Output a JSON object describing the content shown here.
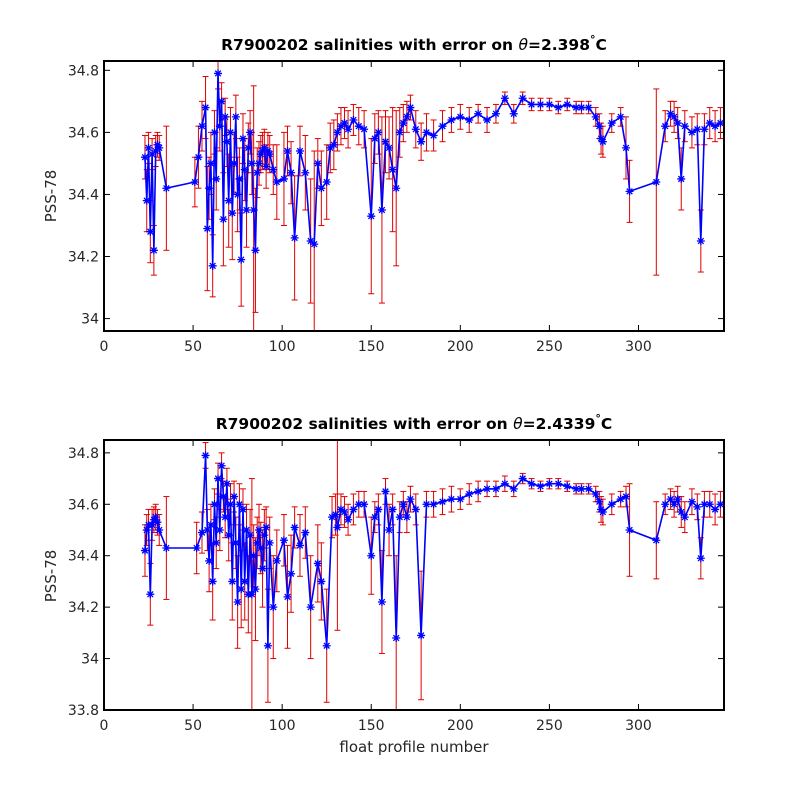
{
  "chart_data": [
    {
      "type": "line",
      "title_prefix": "R7900202 salinities with error on ",
      "title_theta": "θ",
      "title_value": "=2.398",
      "title_unit": "C",
      "xlabel": "",
      "ylabel": "PSS-78",
      "xlim": [
        0,
        348
      ],
      "ylim": [
        33.96,
        34.83
      ],
      "xticks": [
        0,
        50,
        100,
        150,
        200,
        250,
        300
      ],
      "yticks": [
        34,
        34.2,
        34.4,
        34.6,
        34.8
      ],
      "ytick_labels": [
        "34",
        "34.2",
        "34.4",
        "34.6",
        "34.8"
      ],
      "grid": false,
      "colors": {
        "line": "#00cc00",
        "error_bars": "#e00000",
        "markers": "#0000ff"
      },
      "series": [
        {
          "x": [
            23,
            24,
            25,
            26,
            27,
            28,
            29,
            30,
            31,
            35,
            51,
            53,
            55,
            57,
            58,
            59,
            60,
            61,
            62,
            63,
            64,
            65,
            66,
            67,
            68,
            69,
            70,
            71,
            72,
            73,
            74,
            75,
            76,
            77,
            78,
            79,
            80,
            81,
            82,
            83,
            84,
            85,
            86,
            87,
            88,
            89,
            90,
            91,
            92,
            93,
            95,
            97,
            101,
            103,
            105,
            107,
            110,
            113,
            116,
            118,
            120,
            122,
            125,
            127,
            129,
            131,
            133,
            135,
            137,
            140,
            143,
            146,
            150,
            152,
            154,
            156,
            158,
            160,
            162,
            164,
            166,
            168,
            170,
            172,
            175,
            178,
            181,
            185,
            190,
            195,
            200,
            205,
            210,
            215,
            220,
            225,
            230,
            235,
            240,
            245,
            250,
            255,
            260,
            265,
            268,
            272,
            276,
            278,
            279,
            280,
            285,
            290,
            293,
            295,
            310,
            315,
            318,
            320,
            322,
            324,
            326,
            330,
            333,
            335,
            337,
            340,
            343,
            346
          ],
          "y": [
            34.52,
            34.38,
            34.55,
            34.28,
            34.53,
            34.22,
            34.54,
            34.56,
            34.55,
            34.42,
            34.44,
            34.52,
            34.62,
            34.68,
            34.29,
            34.42,
            34.5,
            34.17,
            34.6,
            34.45,
            34.79,
            34.62,
            34.7,
            34.32,
            34.65,
            34.57,
            34.38,
            34.6,
            34.34,
            34.5,
            34.65,
            34.4,
            34.45,
            34.19,
            34.58,
            34.48,
            34.35,
            34.55,
            34.6,
            34.5,
            34.35,
            34.22,
            34.47,
            34.5,
            34.53,
            34.54,
            34.55,
            34.49,
            34.54,
            34.53,
            34.48,
            34.44,
            34.45,
            34.54,
            34.47,
            34.26,
            34.54,
            34.47,
            34.25,
            34.24,
            34.5,
            34.42,
            34.44,
            34.55,
            34.56,
            34.6,
            34.62,
            34.63,
            34.61,
            34.64,
            34.62,
            34.61,
            34.33,
            34.58,
            34.6,
            34.35,
            34.57,
            34.55,
            34.48,
            34.42,
            34.6,
            34.63,
            34.65,
            34.68,
            34.61,
            34.57,
            34.6,
            34.59,
            34.62,
            34.64,
            34.65,
            34.64,
            34.66,
            34.64,
            34.66,
            34.71,
            34.66,
            34.71,
            34.69,
            34.69,
            34.69,
            34.68,
            34.69,
            34.68,
            34.68,
            34.68,
            34.65,
            34.62,
            34.58,
            34.57,
            34.63,
            34.65,
            34.55,
            34.41,
            34.44,
            34.62,
            34.66,
            34.65,
            34.63,
            34.45,
            34.62,
            34.6,
            34.61,
            34.25,
            34.61,
            34.63,
            34.62,
            34.63
          ],
          "err": [
            0.07,
            0.1,
            0.05,
            0.1,
            0.05,
            0.08,
            0.05,
            0.04,
            0.04,
            0.2,
            0.08,
            0.1,
            0.08,
            0.1,
            0.2,
            0.1,
            0.1,
            0.1,
            0.07,
            0.1,
            0.05,
            0.08,
            0.06,
            0.15,
            0.06,
            0.08,
            0.15,
            0.08,
            0.15,
            0.1,
            0.07,
            0.12,
            0.1,
            0.15,
            0.08,
            0.1,
            0.12,
            0.08,
            0.07,
            0.1,
            0.4,
            0.2,
            0.08,
            0.07,
            0.06,
            0.06,
            0.06,
            0.07,
            0.06,
            0.06,
            0.08,
            0.12,
            0.15,
            0.08,
            0.1,
            0.2,
            0.08,
            0.12,
            0.2,
            0.3,
            0.08,
            0.12,
            0.12,
            0.08,
            0.08,
            0.06,
            0.06,
            0.05,
            0.06,
            0.05,
            0.06,
            0.06,
            0.25,
            0.08,
            0.07,
            0.3,
            0.1,
            0.1,
            0.2,
            0.25,
            0.08,
            0.06,
            0.05,
            0.04,
            0.06,
            0.06,
            0.06,
            0.05,
            0.05,
            0.04,
            0.04,
            0.04,
            0.03,
            0.04,
            0.03,
            0.02,
            0.03,
            0.02,
            0.02,
            0.02,
            0.02,
            0.02,
            0.02,
            0.02,
            0.02,
            0.02,
            0.03,
            0.04,
            0.05,
            0.05,
            0.03,
            0.03,
            0.1,
            0.1,
            0.3,
            0.05,
            0.04,
            0.05,
            0.05,
            0.1,
            0.05,
            0.05,
            0.05,
            0.1,
            0.05,
            0.05,
            0.05,
            0.05
          ]
        }
      ]
    },
    {
      "type": "line",
      "title_prefix": "R7900202 salinities with error on ",
      "title_theta": "θ",
      "title_value": "=2.4339",
      "title_unit": "C",
      "xlabel": "float profile number",
      "ylabel": "PSS-78",
      "xlim": [
        0,
        348
      ],
      "ylim": [
        33.8,
        34.85
      ],
      "xticks": [
        0,
        50,
        100,
        150,
        200,
        250,
        300
      ],
      "yticks": [
        33.8,
        34,
        34.2,
        34.4,
        34.6,
        34.8
      ],
      "ytick_labels": [
        "33.8",
        "34",
        "34.2",
        "34.4",
        "34.6",
        "34.8"
      ],
      "grid": false,
      "colors": {
        "line": "#00cc00",
        "error_bars": "#e00000",
        "markers": "#0000ff"
      },
      "series": [
        {
          "x": [
            23,
            24,
            25,
            26,
            27,
            28,
            29,
            30,
            31,
            35,
            52,
            55,
            57,
            58,
            59,
            60,
            61,
            62,
            63,
            64,
            65,
            66,
            67,
            68,
            69,
            70,
            71,
            72,
            73,
            74,
            75,
            76,
            77,
            78,
            79,
            80,
            81,
            82,
            83,
            84,
            85,
            86,
            87,
            88,
            89,
            90,
            91,
            92,
            93,
            95,
            97,
            101,
            103,
            105,
            107,
            110,
            113,
            116,
            120,
            122,
            125,
            128,
            130,
            131,
            133,
            135,
            137,
            140,
            143,
            146,
            150,
            152,
            154,
            156,
            158,
            160,
            162,
            164,
            166,
            168,
            170,
            172,
            175,
            178,
            181,
            185,
            190,
            195,
            200,
            205,
            210,
            215,
            220,
            225,
            230,
            235,
            240,
            245,
            250,
            255,
            260,
            265,
            268,
            272,
            276,
            278,
            279,
            280,
            285,
            290,
            293,
            295,
            310,
            315,
            318,
            320,
            322,
            324,
            326,
            330,
            333,
            335,
            337,
            340,
            343,
            346
          ],
          "y": [
            34.42,
            34.5,
            34.52,
            34.25,
            34.52,
            34.54,
            34.55,
            34.53,
            34.5,
            34.43,
            34.43,
            34.49,
            34.79,
            34.5,
            34.38,
            34.52,
            34.3,
            34.6,
            34.45,
            34.7,
            34.5,
            34.75,
            34.63,
            34.55,
            34.68,
            34.48,
            34.6,
            34.3,
            34.63,
            34.45,
            34.22,
            34.6,
            34.27,
            34.58,
            34.3,
            34.5,
            34.25,
            34.48,
            34.25,
            34.4,
            34.27,
            34.45,
            34.5,
            34.43,
            34.35,
            34.48,
            34.51,
            34.05,
            34.45,
            34.2,
            34.38,
            34.46,
            34.24,
            34.33,
            34.51,
            34.44,
            34.49,
            34.2,
            34.37,
            34.3,
            34.05,
            34.55,
            34.56,
            34.51,
            34.58,
            34.57,
            34.54,
            34.58,
            34.6,
            34.6,
            34.4,
            34.55,
            34.58,
            34.22,
            34.65,
            34.5,
            34.58,
            34.08,
            34.55,
            34.6,
            34.55,
            34.62,
            34.58,
            34.09,
            34.6,
            34.6,
            34.61,
            34.62,
            34.62,
            34.64,
            34.65,
            34.66,
            34.66,
            34.68,
            34.66,
            34.7,
            34.68,
            34.67,
            34.68,
            34.68,
            34.67,
            34.66,
            34.66,
            34.66,
            34.64,
            34.61,
            34.58,
            34.57,
            34.6,
            34.62,
            34.63,
            34.5,
            34.46,
            34.6,
            34.62,
            34.6,
            34.62,
            34.57,
            34.55,
            34.61,
            34.59,
            34.39,
            34.6,
            34.6,
            34.58,
            34.6
          ],
          "err": [
            0.1,
            0.06,
            0.06,
            0.12,
            0.06,
            0.05,
            0.05,
            0.05,
            0.06,
            0.2,
            0.1,
            0.08,
            0.05,
            0.08,
            0.12,
            0.08,
            0.15,
            0.06,
            0.1,
            0.06,
            0.08,
            0.05,
            0.06,
            0.08,
            0.06,
            0.1,
            0.08,
            0.15,
            0.06,
            0.1,
            0.18,
            0.08,
            0.15,
            0.08,
            0.15,
            0.1,
            0.15,
            0.1,
            0.45,
            0.12,
            0.2,
            0.1,
            0.1,
            0.1,
            0.15,
            0.1,
            0.08,
            0.22,
            0.1,
            0.2,
            0.12,
            0.1,
            0.2,
            0.15,
            0.08,
            0.12,
            0.1,
            0.2,
            0.15,
            0.15,
            0.22,
            0.08,
            0.08,
            0.4,
            0.06,
            0.06,
            0.06,
            0.06,
            0.05,
            0.05,
            0.15,
            0.06,
            0.06,
            0.2,
            0.05,
            0.1,
            0.06,
            0.32,
            0.06,
            0.05,
            0.06,
            0.05,
            0.06,
            0.25,
            0.05,
            0.05,
            0.05,
            0.05,
            0.04,
            0.04,
            0.04,
            0.03,
            0.03,
            0.03,
            0.03,
            0.02,
            0.02,
            0.02,
            0.02,
            0.02,
            0.02,
            0.02,
            0.02,
            0.02,
            0.03,
            0.04,
            0.05,
            0.05,
            0.04,
            0.03,
            0.04,
            0.18,
            0.15,
            0.04,
            0.04,
            0.05,
            0.05,
            0.06,
            0.06,
            0.05,
            0.05,
            0.08,
            0.05,
            0.05,
            0.06,
            0.05
          ]
        }
      ]
    }
  ]
}
